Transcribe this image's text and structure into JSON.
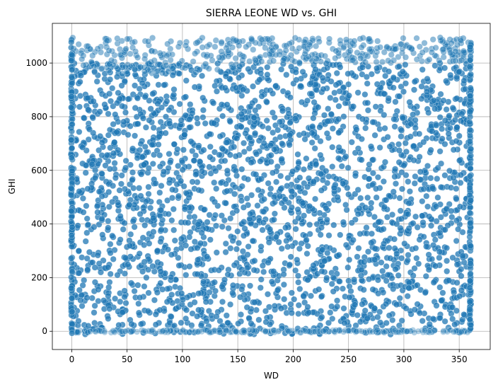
{
  "chart_data": {
    "type": "scatter",
    "title": "SIERRA LEONE WD vs. GHI",
    "xlabel": "WD",
    "ylabel": "GHI",
    "xlim": [
      -17.5,
      378
    ],
    "ylim": [
      -68,
      1148
    ],
    "xticks": [
      0,
      50,
      100,
      150,
      200,
      250,
      300,
      350
    ],
    "yticks": [
      0,
      200,
      400,
      600,
      800,
      1000
    ],
    "grid": true,
    "marker_color": "#1f77b4",
    "marker_alpha": 0.5,
    "x_range": [
      0,
      360
    ],
    "y_range": [
      -12,
      1095
    ],
    "dense_band": {
      "y_min": -12,
      "y_max": 1000
    },
    "sparse_band": {
      "y_min": 1000,
      "y_max": 1095
    },
    "edge_columns_x": [
      0,
      360
    ],
    "zero_baseline_y": 0
  }
}
